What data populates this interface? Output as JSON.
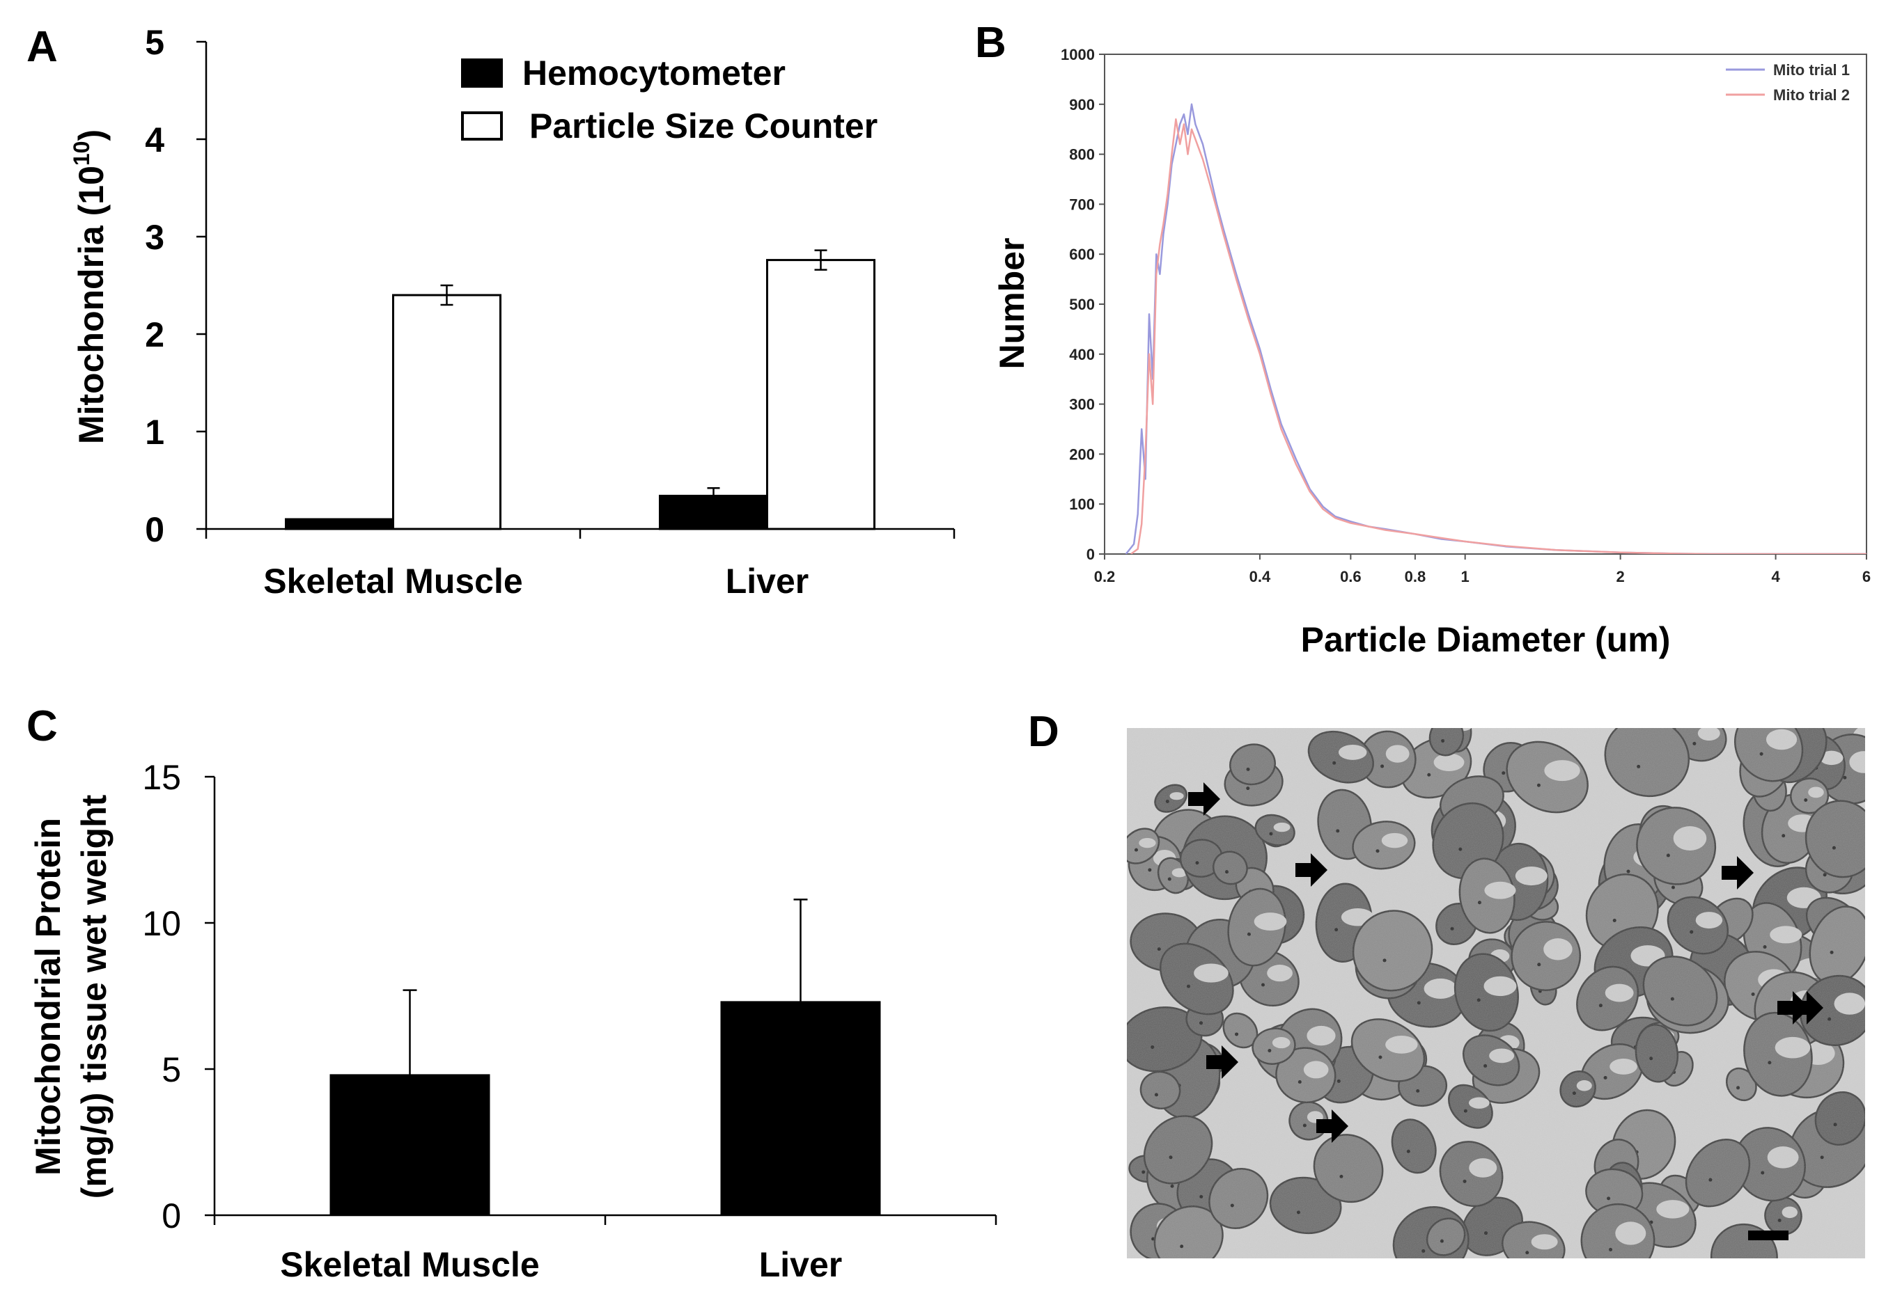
{
  "chart_data": [
    {
      "panel": "A",
      "type": "bar",
      "categories": [
        "Skeletal Muscle",
        "Liver"
      ],
      "series": [
        {
          "name": "Hemocytometer",
          "values": [
            0.1,
            0.34
          ],
          "errors": [
            0.0,
            0.08
          ],
          "color": "#000000"
        },
        {
          "name": "Particle Size Counter",
          "values": [
            2.4,
            2.76
          ],
          "errors": [
            0.1,
            0.1
          ],
          "color": "#ffffff"
        }
      ],
      "ylabel_main": "Mitochondria (10",
      "ylabel_sup": "10",
      "ylabel_close": ")",
      "ylim": [
        0,
        5
      ],
      "yticks": [
        "0",
        "1",
        "2",
        "3",
        "4",
        "5"
      ],
      "grid": false,
      "legend": "top"
    },
    {
      "panel": "B",
      "type": "line",
      "xlabel": "Particle Diameter (um)",
      "ylabel": "Number",
      "xscale": "log",
      "xlim": [
        0.2,
        6
      ],
      "ylim": [
        0,
        1000
      ],
      "xticks": [
        "0.2",
        "0.4",
        "0.6",
        "0.8",
        "1",
        "2",
        "4",
        "6"
      ],
      "yticks": [
        "0",
        "100",
        "200",
        "300",
        "400",
        "500",
        "600",
        "700",
        "800",
        "900",
        "1000"
      ],
      "legend": "top-right",
      "series": [
        {
          "name": "Mito trial 1",
          "color": "#9999dd",
          "x": [
            0.22,
            0.228,
            0.232,
            0.236,
            0.24,
            0.244,
            0.248,
            0.252,
            0.256,
            0.26,
            0.265,
            0.27,
            0.275,
            0.28,
            0.285,
            0.29,
            0.295,
            0.3,
            0.31,
            0.32,
            0.33,
            0.34,
            0.36,
            0.38,
            0.4,
            0.42,
            0.44,
            0.47,
            0.5,
            0.53,
            0.56,
            0.6,
            0.65,
            0.7,
            0.8,
            0.9,
            1.0,
            1.2,
            1.5,
            2.0,
            2.5,
            3.0,
            4.0,
            6.0
          ],
          "y": [
            0,
            20,
            80,
            250,
            150,
            480,
            350,
            600,
            560,
            640,
            700,
            780,
            820,
            860,
            880,
            840,
            900,
            860,
            820,
            760,
            700,
            650,
            560,
            480,
            410,
            330,
            260,
            190,
            130,
            95,
            75,
            65,
            55,
            50,
            40,
            30,
            25,
            15,
            8,
            3,
            1,
            0,
            0,
            0
          ]
        },
        {
          "name": "Mito trial 2",
          "color": "#f0a0a0",
          "x": [
            0.225,
            0.232,
            0.236,
            0.24,
            0.244,
            0.248,
            0.252,
            0.256,
            0.26,
            0.265,
            0.27,
            0.275,
            0.28,
            0.285,
            0.29,
            0.295,
            0.3,
            0.31,
            0.32,
            0.33,
            0.34,
            0.36,
            0.38,
            0.4,
            0.42,
            0.44,
            0.47,
            0.5,
            0.53,
            0.56,
            0.6,
            0.65,
            0.7,
            0.8,
            0.9,
            1.0,
            1.2,
            1.5,
            2.0,
            2.5,
            3.0,
            4.0,
            6.0
          ],
          "y": [
            0,
            10,
            60,
            200,
            400,
            300,
            560,
            620,
            660,
            720,
            800,
            870,
            820,
            860,
            800,
            850,
            830,
            790,
            740,
            690,
            640,
            550,
            470,
            400,
            320,
            250,
            180,
            125,
            90,
            72,
            62,
            55,
            48,
            40,
            32,
            25,
            16,
            8,
            3,
            1,
            0,
            0,
            0
          ]
        }
      ]
    },
    {
      "panel": "C",
      "type": "bar",
      "categories": [
        "Skeletal Muscle",
        "Liver"
      ],
      "series": [
        {
          "values": [
            4.8,
            7.3
          ],
          "errors": [
            2.9,
            3.5
          ],
          "color": "#000000"
        }
      ],
      "ylabel_line1": "Mitochondrial Protein",
      "ylabel_line2": "(mg/g) tissue wet weight",
      "ylim": [
        0,
        15
      ],
      "yticks": [
        "0",
        "5",
        "10",
        "15"
      ],
      "grid": false
    }
  ],
  "panels": {
    "a": "A",
    "b": "B",
    "c": "C",
    "d": "D"
  },
  "micrograph": {
    "arrow_count": 7,
    "has_scale_bar": true
  }
}
